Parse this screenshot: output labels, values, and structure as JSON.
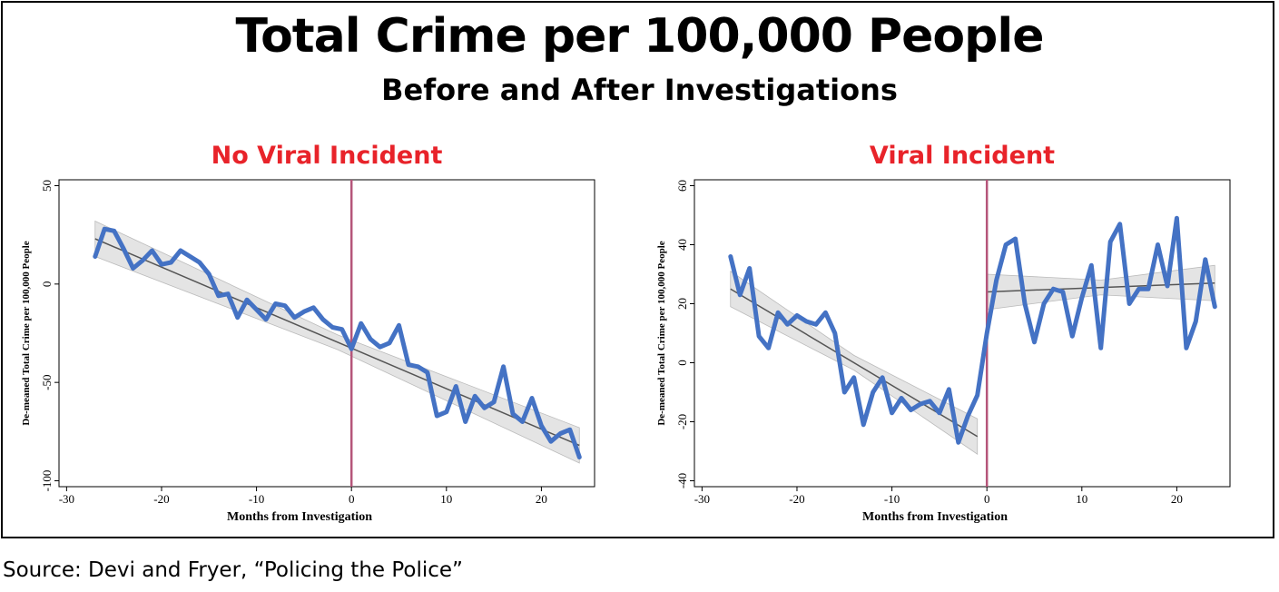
{
  "title": "Total Crime per 100,000 People",
  "subtitle": "Before and After Investigations",
  "source": "Source: Devi and Fryer, “Policing the Police”",
  "colors": {
    "series": "#4472c4",
    "panel_title": "#e8232a",
    "vline": "#b5557a",
    "fit": "#555555",
    "band": "#d9d9d9"
  },
  "chart_data": [
    {
      "type": "line",
      "panel_title": "No Viral Incident",
      "xlabel": "Months from Investigation",
      "ylabel": "De-meaned Total Crime per 100,000 People",
      "xlim": [
        -30,
        25
      ],
      "ylim": [
        -100,
        50
      ],
      "xticks": [
        -30,
        -20,
        -10,
        0,
        10,
        20
      ],
      "yticks": [
        -100,
        -50,
        0,
        50
      ],
      "vertical_line_x": 0,
      "x": [
        -27,
        -26,
        -25,
        -24,
        -23,
        -22,
        -21,
        -20,
        -19,
        -18,
        -17,
        -16,
        -15,
        -14,
        -13,
        -12,
        -11,
        -10,
        -9,
        -8,
        -7,
        -6,
        -5,
        -4,
        -3,
        -2,
        -1,
        0,
        1,
        2,
        3,
        4,
        5,
        6,
        7,
        8,
        9,
        10,
        11,
        12,
        13,
        14,
        15,
        16,
        17,
        18,
        19,
        20,
        21,
        22,
        23,
        24
      ],
      "series": [
        {
          "values": [
            14,
            28,
            27,
            18,
            8,
            12,
            17,
            10,
            11,
            17,
            14,
            11,
            5,
            -6,
            -5,
            -17,
            -8,
            -13,
            -18,
            -10,
            -11,
            -17,
            -14,
            -12,
            -18,
            -22,
            -23,
            -33,
            -20,
            -28,
            -32,
            -30,
            -21,
            -41,
            -42,
            -45,
            -67,
            -65,
            -52,
            -70,
            -57,
            -63,
            -60,
            -42,
            -66,
            -70,
            -58,
            -72,
            -80,
            -76,
            -74,
            -88
          ]
        }
      ],
      "fit": [
        {
          "x0": -27,
          "y0": 23,
          "x1": 24,
          "y1": -82
        }
      ]
    },
    {
      "type": "line",
      "panel_title": "Viral Incident",
      "xlabel": "Months from Investigation",
      "ylabel": "De-meaned Total Crime per 100,000 People",
      "xlim": [
        -30,
        25
      ],
      "ylim": [
        -40,
        60
      ],
      "xticks": [
        -30,
        -20,
        -10,
        0,
        10,
        20
      ],
      "yticks": [
        -40,
        -20,
        0,
        20,
        40,
        60
      ],
      "vertical_line_x": 0,
      "x": [
        -27,
        -26,
        -25,
        -24,
        -23,
        -22,
        -21,
        -20,
        -19,
        -18,
        -17,
        -16,
        -15,
        -14,
        -13,
        -12,
        -11,
        -10,
        -9,
        -8,
        -7,
        -6,
        -5,
        -4,
        -3,
        -2,
        -1,
        0,
        1,
        2,
        3,
        4,
        5,
        6,
        7,
        8,
        9,
        10,
        11,
        12,
        13,
        14,
        15,
        16,
        17,
        18,
        19,
        20,
        21,
        22,
        23,
        24
      ],
      "series": [
        {
          "values": [
            36,
            23,
            32,
            9,
            5,
            17,
            13,
            16,
            14,
            13,
            17,
            10,
            -10,
            -5,
            -21,
            -10,
            -5,
            -17,
            -12,
            -16,
            -14,
            -13,
            -17,
            -9,
            -27,
            -18,
            -11,
            10,
            28,
            40,
            42,
            20,
            7,
            20,
            25,
            24,
            9,
            22,
            33,
            5,
            41,
            47,
            20,
            25,
            25,
            40,
            26,
            49,
            5,
            14,
            35,
            19
          ]
        }
      ],
      "fit": [
        {
          "x0": -27,
          "y0": 25,
          "x1": -1,
          "y1": -25
        },
        {
          "x0": 0,
          "y0": 24,
          "x1": 24,
          "y1": 27
        }
      ]
    }
  ]
}
